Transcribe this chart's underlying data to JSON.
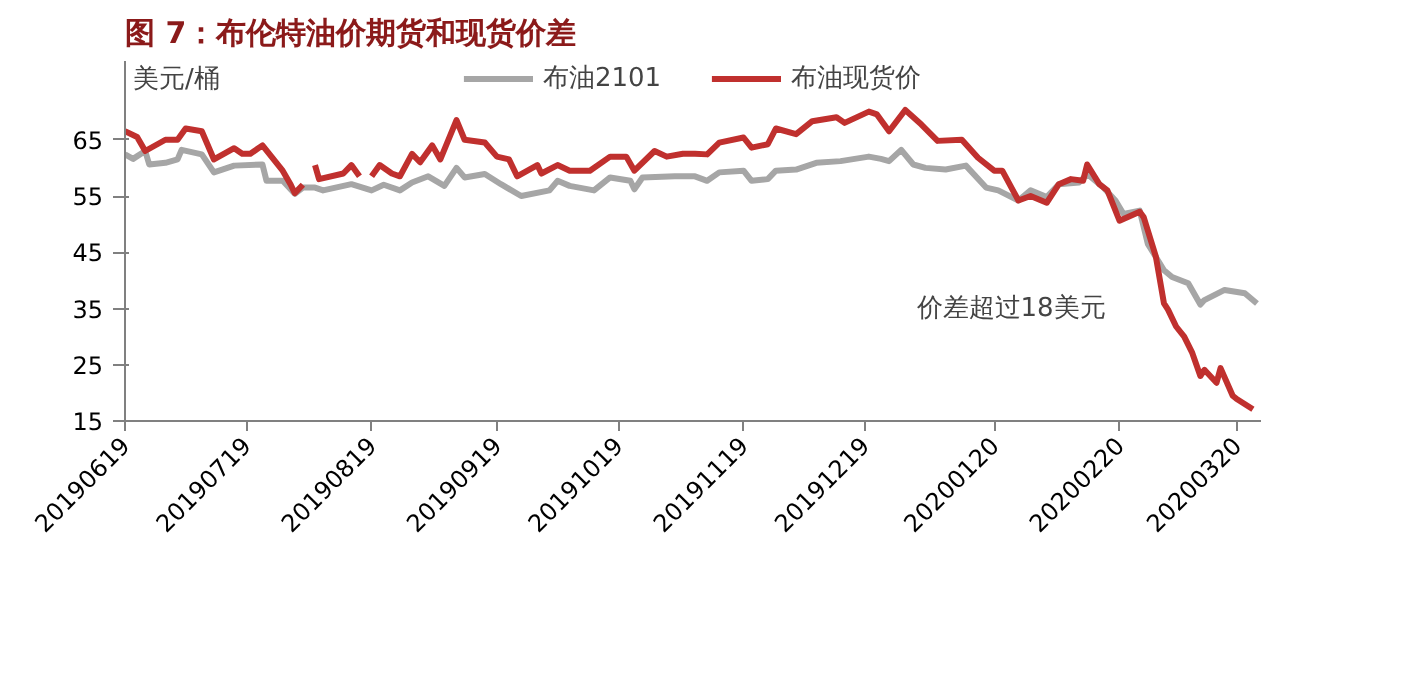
{
  "chart_data": {
    "type": "line",
    "title": "图 7：布伦特油价期货和现货价差",
    "ylabel": "美元/桶",
    "xlim": [
      "2019-06-19",
      "2020-03-26"
    ],
    "xticks": [
      {
        "value": "2019-06-19",
        "label": "20190619"
      },
      {
        "value": "2019-07-19",
        "label": "20190719"
      },
      {
        "value": "2019-08-19",
        "label": "20190819"
      },
      {
        "value": "2019-09-19",
        "label": "20190919"
      },
      {
        "value": "2019-10-19",
        "label": "20191019"
      },
      {
        "value": "2019-11-19",
        "label": "20191119"
      },
      {
        "value": "2019-12-19",
        "label": "20191219"
      },
      {
        "value": "2020-01-20",
        "label": "20200120"
      },
      {
        "value": "2020-02-20",
        "label": "20200220"
      },
      {
        "value": "2020-03-20",
        "label": "20200320"
      }
    ],
    "ylim": [
      15,
      79
    ],
    "yticks": [
      15,
      25,
      35,
      45,
      55,
      65
    ],
    "grid": false,
    "legend": "top",
    "line_style": "solid",
    "marker": "none",
    "annotations": [
      "价差超过18美元"
    ],
    "series": [
      {
        "name": "布油2101",
        "color": "#a6a6a6",
        "x": [
          "2019-06-19",
          "2019-06-21",
          "2019-06-24",
          "2019-06-25",
          "2019-06-29",
          "2019-07-02",
          "2019-07-03",
          "2019-07-08",
          "2019-07-11",
          "2019-07-16",
          "2019-07-23",
          "2019-07-24",
          "2019-07-28",
          "2019-07-31",
          "2019-08-02",
          "2019-08-05",
          "2019-08-07",
          "2019-08-14",
          "2019-08-19",
          "2019-08-22",
          "2019-08-26",
          "2019-08-29",
          "2019-09-02",
          "2019-09-06",
          "2019-09-09",
          "2019-09-11",
          "2019-09-16",
          "2019-09-20",
          "2019-09-25",
          "2019-10-02",
          "2019-10-04",
          "2019-10-07",
          "2019-10-13",
          "2019-10-17",
          "2019-10-22",
          "2019-10-23",
          "2019-10-25",
          "2019-11-02",
          "2019-11-07",
          "2019-11-10",
          "2019-11-13",
          "2019-11-19",
          "2019-11-21",
          "2019-11-25",
          "2019-11-27",
          "2019-12-02",
          "2019-12-07",
          "2019-12-13",
          "2019-12-20",
          "2019-12-23",
          "2019-12-25",
          "2019-12-28",
          "2019-12-31",
          "2020-01-03",
          "2020-01-08",
          "2020-01-13",
          "2020-01-18",
          "2020-01-21",
          "2020-01-26",
          "2020-01-29",
          "2020-02-02",
          "2020-02-05",
          "2020-02-10",
          "2020-02-12",
          "2020-02-16",
          "2020-02-19",
          "2020-02-21",
          "2020-02-25",
          "2020-02-27",
          "2020-03-02",
          "2020-03-04",
          "2020-03-08",
          "2020-03-11",
          "2020-03-12",
          "2020-03-17",
          "2020-03-22",
          "2020-03-25"
        ],
        "values": [
          62.4,
          61.6,
          63,
          60.6,
          60.9,
          61.5,
          63.2,
          62.4,
          59.2,
          60.4,
          60.6,
          57.7,
          57.7,
          55.4,
          56.5,
          56.5,
          56,
          57.1,
          56,
          57,
          56,
          57.4,
          58.5,
          56.8,
          60,
          58.3,
          58.9,
          57.1,
          55,
          56,
          57.7,
          56.8,
          56,
          58.3,
          57.7,
          56.2,
          58.3,
          58.5,
          58.5,
          57.7,
          59.2,
          59.5,
          57.7,
          58,
          59.5,
          59.7,
          60.9,
          61.2,
          62,
          61.6,
          61.2,
          63.2,
          60.6,
          60,
          59.7,
          60.4,
          56.5,
          56,
          54.2,
          56,
          54.8,
          57.1,
          57.4,
          58.9,
          56.5,
          54.2,
          51.8,
          52.4,
          46.5,
          41.8,
          40.6,
          39.5,
          35.7,
          36.5,
          38.3,
          37.7,
          35.9
        ]
      },
      {
        "name": "布油现货价",
        "color": "#c0302e",
        "x": [
          "2019-06-19",
          "2019-06-22",
          "2019-06-24",
          "2019-06-29",
          "2019-07-02",
          "2019-07-04",
          "2019-07-08",
          "2019-07-11",
          "2019-07-16",
          "2019-07-18",
          "2019-07-20",
          "2019-07-23",
          "2019-07-28",
          "2019-07-30",
          "2019-07-31",
          "2019-08-02",
          "2019-08-04",
          "2019-08-05",
          "2019-08-06",
          "2019-08-12",
          "2019-08-14",
          "2019-08-16",
          "2019-08-18",
          "2019-08-19",
          "2019-08-21",
          "2019-08-24",
          "2019-08-26",
          "2019-08-29",
          "2019-08-31",
          "2019-09-03",
          "2019-09-05",
          "2019-09-09",
          "2019-09-11",
          "2019-09-16",
          "2019-09-19",
          "2019-09-22",
          "2019-09-24",
          "2019-09-29",
          "2019-09-30",
          "2019-10-04",
          "2019-10-07",
          "2019-10-12",
          "2019-10-17",
          "2019-10-21",
          "2019-10-23",
          "2019-10-28",
          "2019-10-31",
          "2019-11-04",
          "2019-11-07",
          "2019-11-10",
          "2019-11-13",
          "2019-11-19",
          "2019-11-21",
          "2019-11-25",
          "2019-11-27",
          "2019-12-02",
          "2019-12-06",
          "2019-12-12",
          "2019-12-14",
          "2019-12-20",
          "2019-12-22",
          "2019-12-25",
          "2019-12-29",
          "2020-01-02",
          "2020-01-06",
          "2020-01-12",
          "2020-01-16",
          "2020-01-20",
          "2020-01-22",
          "2020-01-26",
          "2020-01-29",
          "2020-02-02",
          "2020-02-05",
          "2020-02-08",
          "2020-02-11",
          "2020-02-12",
          "2020-02-15",
          "2020-02-17",
          "2020-02-20",
          "2020-02-25",
          "2020-02-26",
          "2020-02-29",
          "2020-03-02",
          "2020-03-03",
          "2020-03-05",
          "2020-03-07",
          "2020-03-09",
          "2020-03-11",
          "2020-03-12",
          "2020-03-15",
          "2020-03-16",
          "2020-03-19",
          "2020-03-20",
          "2020-03-24"
        ],
        "values": [
          66.5,
          65.5,
          63,
          65,
          65,
          67,
          66.5,
          61.5,
          63.5,
          62.5,
          62.5,
          64,
          59.5,
          57,
          55.5,
          57,
          null,
          60.5,
          58,
          59,
          60.5,
          58.5,
          null,
          58.5,
          60.5,
          59,
          58.5,
          62.5,
          61,
          64,
          61.5,
          68.5,
          65,
          64.5,
          62,
          61.5,
          58.5,
          60.5,
          59,
          60.5,
          59.5,
          59.5,
          62,
          62,
          59.5,
          63,
          62,
          62.5,
          62.5,
          62.4,
          64.5,
          65.4,
          63.6,
          64.2,
          67,
          66,
          68.3,
          69,
          68,
          70,
          69.5,
          66.5,
          70.3,
          67.7,
          64.8,
          65,
          61.8,
          59.5,
          59.5,
          54.2,
          55,
          53.8,
          57.1,
          58,
          57.7,
          60.6,
          57.1,
          56,
          50.6,
          52.2,
          51.2,
          44.2,
          35.9,
          34.8,
          31.8,
          30,
          27.1,
          23,
          24.1,
          21.8,
          24.4,
          19.5,
          18.9,
          17.1
        ]
      }
    ]
  }
}
